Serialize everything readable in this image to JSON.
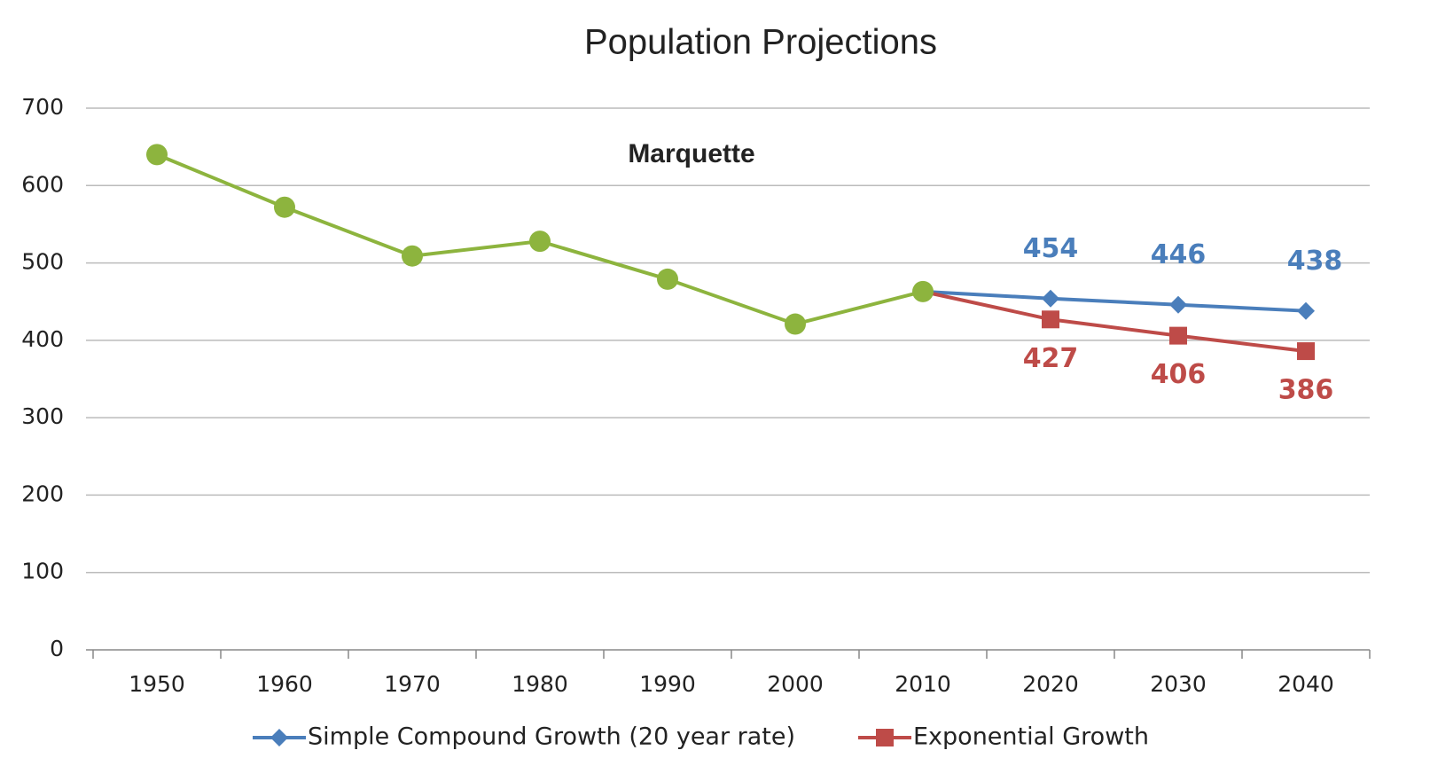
{
  "chart_data": {
    "type": "line",
    "title": "Population Projections",
    "subtitle": "Marquette",
    "categories": [
      "1950",
      "1960",
      "1970",
      "1980",
      "1990",
      "2000",
      "2010",
      "2020",
      "2030",
      "2040"
    ],
    "series": [
      {
        "color": "#8db43e",
        "marker": "circle",
        "values": [
          640,
          572,
          509,
          528,
          479,
          421,
          463,
          null,
          null,
          null
        ]
      },
      {
        "name": "Simple Compound Growth (20 year rate)",
        "color": "#4a7ebb",
        "marker": "diamond",
        "label_position": "above",
        "values": [
          null,
          null,
          null,
          null,
          null,
          null,
          463,
          454,
          446,
          438
        ],
        "value_labels": [
          null,
          null,
          null,
          null,
          null,
          null,
          null,
          "454",
          "446",
          "438"
        ]
      },
      {
        "name": "Exponential Growth",
        "color": "#be4b48",
        "marker": "square",
        "label_position": "below",
        "values": [
          null,
          null,
          null,
          null,
          null,
          null,
          463,
          427,
          406,
          386
        ],
        "value_labels": [
          null,
          null,
          null,
          null,
          null,
          null,
          null,
          "427",
          "406",
          "386"
        ]
      }
    ],
    "ylim": [
      0,
      700
    ],
    "yticks": [
      0,
      100,
      200,
      300,
      400,
      500,
      600,
      700
    ],
    "grid": true,
    "legend": "bottom"
  }
}
